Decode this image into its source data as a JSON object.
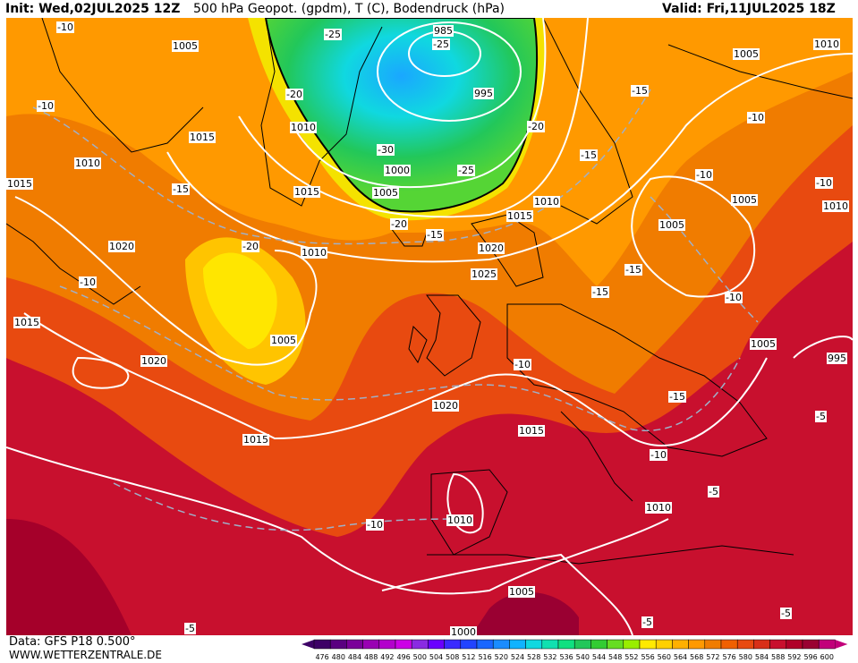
{
  "header": {
    "init": "Init: Wed,02JUL2025 12Z",
    "title": "500 hPa Geopot. (gpdm), T (C), Bodendruck (hPa)",
    "valid": "Valid: Fri,11JUL2025 18Z"
  },
  "footer": {
    "source": "Data: GFS P18 0.500°",
    "site": "WWW.WETTERZENTRALE.DE"
  },
  "colors": {
    "sea_bg": "#c8102e",
    "deep_red": "#a5002a",
    "orange": "#f07c00",
    "yellow": "#ffd000",
    "green": "#22c75a",
    "cyan": "#10d8e0",
    "isobar": "#ffffff"
  },
  "isobar_labels": [
    {
      "text": "985"
    },
    {
      "text": "995"
    },
    {
      "text": "995"
    },
    {
      "text": "1000"
    },
    {
      "text": "1000"
    },
    {
      "text": "1005"
    },
    {
      "text": "1005"
    },
    {
      "text": "1005"
    },
    {
      "text": "1005"
    },
    {
      "text": "1005"
    },
    {
      "text": "1005"
    },
    {
      "text": "1005"
    },
    {
      "text": "1005"
    },
    {
      "text": "1010"
    },
    {
      "text": "1010"
    },
    {
      "text": "1010"
    },
    {
      "text": "1010"
    },
    {
      "text": "1010"
    },
    {
      "text": "1010"
    },
    {
      "text": "1010"
    },
    {
      "text": "1010"
    },
    {
      "text": "1015"
    },
    {
      "text": "1015"
    },
    {
      "text": "1015"
    },
    {
      "text": "1015"
    },
    {
      "text": "1015"
    },
    {
      "text": "1015"
    },
    {
      "text": "1015"
    },
    {
      "text": "1020"
    },
    {
      "text": "1020"
    },
    {
      "text": "1020"
    },
    {
      "text": "1020"
    },
    {
      "text": "1025"
    }
  ],
  "temp_labels": [
    {
      "text": "-10"
    },
    {
      "text": "-10"
    },
    {
      "text": "-10"
    },
    {
      "text": "-10"
    },
    {
      "text": "-10"
    },
    {
      "text": "-10"
    },
    {
      "text": "-10"
    },
    {
      "text": "-10"
    },
    {
      "text": "-10"
    },
    {
      "text": "-10"
    },
    {
      "text": "-15"
    },
    {
      "text": "-15"
    },
    {
      "text": "-15"
    },
    {
      "text": "-15"
    },
    {
      "text": "-15"
    },
    {
      "text": "-15"
    },
    {
      "text": "-15"
    },
    {
      "text": "-20"
    },
    {
      "text": "-20"
    },
    {
      "text": "-20"
    },
    {
      "text": "-20"
    },
    {
      "text": "-25"
    },
    {
      "text": "-25"
    },
    {
      "text": "-25"
    },
    {
      "text": "-30"
    },
    {
      "text": "-5"
    },
    {
      "text": "-5"
    },
    {
      "text": "-5"
    },
    {
      "text": "-5"
    },
    {
      "text": "-5"
    }
  ],
  "scale": {
    "ticks": [
      "476",
      "480",
      "484",
      "488",
      "492",
      "496",
      "500",
      "504",
      "508",
      "512",
      "516",
      "520",
      "524",
      "528",
      "532",
      "536",
      "540",
      "544",
      "548",
      "552",
      "556",
      "560",
      "564",
      "568",
      "572",
      "576",
      "580",
      "584",
      "588",
      "592",
      "596",
      "600"
    ],
    "colors": [
      "#3d0066",
      "#5a0080",
      "#7a0099",
      "#9900b3",
      "#b300cc",
      "#cc00e6",
      "#8a2be2",
      "#6a00ff",
      "#3a2bff",
      "#2244ff",
      "#1a66ff",
      "#1a8cff",
      "#10b3ff",
      "#10d8e0",
      "#10e0b0",
      "#10e080",
      "#22c75a",
      "#33cc33",
      "#66dd22",
      "#99ee00",
      "#ffea00",
      "#ffd000",
      "#ffb000",
      "#ff9900",
      "#f07c00",
      "#f06000",
      "#e84a10",
      "#d83018",
      "#c8102e",
      "#b00028",
      "#9a0032",
      "#c2007a"
    ]
  }
}
